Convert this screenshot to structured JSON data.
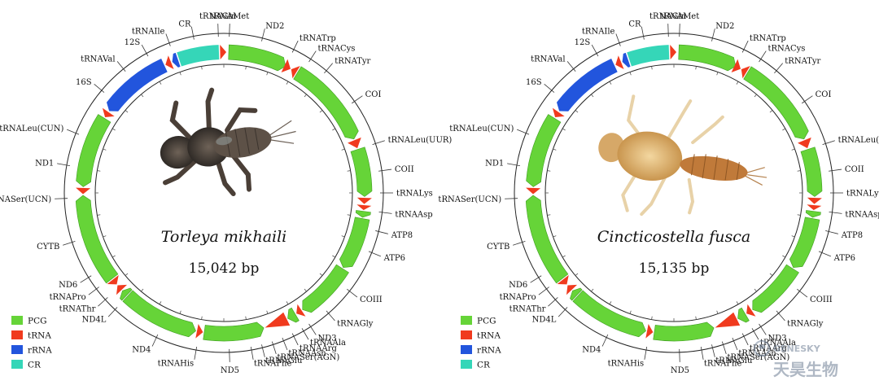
{
  "colors": {
    "PCG": "#66d438",
    "tRNA": "#f03a1e",
    "rRNA": "#2255dd",
    "CR": "#35d6b8"
  },
  "legend": [
    {
      "key": "PCG",
      "label": "PCG"
    },
    {
      "key": "tRNA",
      "label": "tRNA"
    },
    {
      "key": "rRNA",
      "label": "rRNA"
    },
    {
      "key": "CR",
      "label": "CR"
    }
  ],
  "maps": [
    {
      "species": "Torleya mikhaili",
      "length": "15,042 bp",
      "image_alt": "Torleya mikhaili nymph photo",
      "features": [
        {
          "type": "PCG",
          "start": 2,
          "end": 26,
          "dir": 1
        },
        {
          "type": "tRNA",
          "start": 25.5,
          "end": 28.3,
          "dir": 1
        },
        {
          "type": "tRNA",
          "start": 28.6,
          "end": 31,
          "dir": -1
        },
        {
          "type": "PCG",
          "start": 31.5,
          "end": 67.5,
          "dir": 1
        },
        {
          "type": "tRNA",
          "start": 68,
          "end": 71.5,
          "dir": 1
        },
        {
          "type": "PCG",
          "start": 72,
          "end": 91.5,
          "dir": 1
        },
        {
          "type": "tRNA",
          "start": 92,
          "end": 94.5,
          "dir": 1
        },
        {
          "type": "tRNA",
          "start": 95,
          "end": 97,
          "dir": 1
        },
        {
          "type": "PCG",
          "start": 97.5,
          "end": 100,
          "dir": 1
        },
        {
          "type": "PCG",
          "start": 100.5,
          "end": 122,
          "dir": 1
        },
        {
          "type": "PCG",
          "start": 122.5,
          "end": 146,
          "dir": 1
        },
        {
          "type": "tRNA",
          "start": 146.5,
          "end": 149,
          "dir": 1
        },
        {
          "type": "PCG",
          "start": 149.5,
          "end": 153,
          "dir": 1
        },
        {
          "type": "tRNA",
          "start": 153.5,
          "end": 163,
          "dir": 1
        },
        {
          "type": "PCG",
          "start": 163.5,
          "end": 188,
          "dir": -1
        },
        {
          "type": "tRNA",
          "start": 188.5,
          "end": 191,
          "dir": -1
        },
        {
          "type": "PCG",
          "start": 191.5,
          "end": 223,
          "dir": -1
        },
        {
          "type": "PCG",
          "start": 223.5,
          "end": 226,
          "dir": 1
        },
        {
          "type": "tRNA",
          "start": 226.5,
          "end": 229,
          "dir": 1
        },
        {
          "type": "tRNA",
          "start": 229.5,
          "end": 232,
          "dir": -1
        },
        {
          "type": "PCG",
          "start": 232.5,
          "end": 269,
          "dir": 1
        },
        {
          "type": "tRNA",
          "start": 269.5,
          "end": 272,
          "dir": -1
        },
        {
          "type": "PCG",
          "start": 272.5,
          "end": 302,
          "dir": -1
        },
        {
          "type": "tRNA",
          "start": 302.5,
          "end": 305,
          "dir": -1
        },
        {
          "type": "rRNA",
          "start": 305.5,
          "end": 335,
          "dir": -1
        },
        {
          "type": "tRNA",
          "start": 335.5,
          "end": 338,
          "dir": -1
        },
        {
          "type": "rRNA",
          "start": 338.5,
          "end": 341,
          "dir": -1
        },
        {
          "type": "CR",
          "start": 341.5,
          "end": 358,
          "dir": 0
        },
        {
          "type": "tRNA",
          "start": 358.5,
          "end": 361,
          "dir": 1
        }
      ],
      "labels": [
        {
          "text": "tRNAMet",
          "angle": 2
        },
        {
          "text": "CR",
          "angle": 349
        },
        {
          "text": "tRNAGln",
          "angle": 358
        },
        {
          "text": "ND2",
          "angle": 14
        },
        {
          "text": "tRNATrp",
          "angle": 26
        },
        {
          "text": "tRNACys",
          "angle": 33
        },
        {
          "text": "tRNATyr",
          "angle": 40
        },
        {
          "text": "COI",
          "angle": 55
        },
        {
          "text": "tRNALeu(UUR)",
          "angle": 72
        },
        {
          "text": "COII",
          "angle": 82
        },
        {
          "text": "tRNALys",
          "angle": 90
        },
        {
          "text": "tRNAAsp",
          "angle": 97
        },
        {
          "text": "ATP8",
          "angle": 104
        },
        {
          "text": "ATP6",
          "angle": 112
        },
        {
          "text": "COIII",
          "angle": 128
        },
        {
          "text": "tRNAGly",
          "angle": 139
        },
        {
          "text": "ND3",
          "angle": 147
        },
        {
          "text": "tRNAAla",
          "angle": 150
        },
        {
          "text": "tRNAArg",
          "angle": 154
        },
        {
          "text": "tRNAAsn",
          "angle": 158
        },
        {
          "text": "tRNASer(AGN)",
          "angle": 162
        },
        {
          "text": "tRNAGlu",
          "angle": 166
        },
        {
          "text": "tRNAPhe",
          "angle": 170
        },
        {
          "text": "ND5",
          "angle": 178
        },
        {
          "text": "tRNAHis",
          "angle": 190
        },
        {
          "text": "ND4",
          "angle": 205
        },
        {
          "text": "ND4L",
          "angle": 223
        },
        {
          "text": "tRNAThr",
          "angle": 228
        },
        {
          "text": "tRNAPro",
          "angle": 233
        },
        {
          "text": "ND6",
          "angle": 238
        },
        {
          "text": "CYTB",
          "angle": 252
        },
        {
          "text": "tRNASer(UCN)",
          "angle": 268
        },
        {
          "text": "ND1",
          "angle": 280
        },
        {
          "text": "tRNALeu(CUN)",
          "angle": 292
        },
        {
          "text": "16S",
          "angle": 310
        },
        {
          "text": "tRNAVal",
          "angle": 321
        },
        {
          "text": "12S",
          "angle": 331
        },
        {
          "text": "tRNAIle",
          "angle": 340
        }
      ]
    },
    {
      "species": "Cincticostella fusca",
      "length": "15,135 bp",
      "image_alt": "Cincticostella fusca nymph photo",
      "features": [
        {
          "type": "PCG",
          "start": 2,
          "end": 26,
          "dir": 1
        },
        {
          "type": "tRNA",
          "start": 25.5,
          "end": 28.3,
          "dir": 1
        },
        {
          "type": "tRNA",
          "start": 28.6,
          "end": 31,
          "dir": -1
        },
        {
          "type": "PCG",
          "start": 31.5,
          "end": 67.5,
          "dir": 1
        },
        {
          "type": "tRNA",
          "start": 68,
          "end": 71.5,
          "dir": 1
        },
        {
          "type": "PCG",
          "start": 72,
          "end": 91.5,
          "dir": 1
        },
        {
          "type": "tRNA",
          "start": 92,
          "end": 94.5,
          "dir": 1
        },
        {
          "type": "tRNA",
          "start": 95,
          "end": 97,
          "dir": 1
        },
        {
          "type": "PCG",
          "start": 97.5,
          "end": 100,
          "dir": 1
        },
        {
          "type": "PCG",
          "start": 100.5,
          "end": 122,
          "dir": 1
        },
        {
          "type": "PCG",
          "start": 122.5,
          "end": 146,
          "dir": 1
        },
        {
          "type": "tRNA",
          "start": 146.5,
          "end": 149,
          "dir": 1
        },
        {
          "type": "PCG",
          "start": 149.5,
          "end": 153,
          "dir": 1
        },
        {
          "type": "tRNA",
          "start": 153.5,
          "end": 163,
          "dir": 1
        },
        {
          "type": "PCG",
          "start": 163.5,
          "end": 188,
          "dir": -1
        },
        {
          "type": "tRNA",
          "start": 188.5,
          "end": 191,
          "dir": -1
        },
        {
          "type": "PCG",
          "start": 191.5,
          "end": 223,
          "dir": -1
        },
        {
          "type": "PCG",
          "start": 223.5,
          "end": 226,
          "dir": 1
        },
        {
          "type": "tRNA",
          "start": 226.5,
          "end": 229,
          "dir": 1
        },
        {
          "type": "tRNA",
          "start": 229.5,
          "end": 232,
          "dir": -1
        },
        {
          "type": "PCG",
          "start": 232.5,
          "end": 269,
          "dir": 1
        },
        {
          "type": "tRNA",
          "start": 269.5,
          "end": 272,
          "dir": -1
        },
        {
          "type": "PCG",
          "start": 272.5,
          "end": 302,
          "dir": -1
        },
        {
          "type": "tRNA",
          "start": 302.5,
          "end": 305,
          "dir": -1
        },
        {
          "type": "rRNA",
          "start": 305.5,
          "end": 335,
          "dir": -1
        },
        {
          "type": "tRNA",
          "start": 335.5,
          "end": 338,
          "dir": -1
        },
        {
          "type": "rRNA",
          "start": 338.5,
          "end": 341,
          "dir": -1
        },
        {
          "type": "CR",
          "start": 341.5,
          "end": 358,
          "dir": 0
        },
        {
          "type": "tRNA",
          "start": 358.5,
          "end": 361,
          "dir": 1
        }
      ],
      "labels": [
        {
          "text": "tRNAMet",
          "angle": 2
        },
        {
          "text": "CR",
          "angle": 349
        },
        {
          "text": "tRNAGln",
          "angle": 358
        },
        {
          "text": "ND2",
          "angle": 14
        },
        {
          "text": "tRNATrp",
          "angle": 26
        },
        {
          "text": "tRNACys",
          "angle": 33
        },
        {
          "text": "tRNATyr",
          "angle": 40
        },
        {
          "text": "COI",
          "angle": 55
        },
        {
          "text": "tRNALeu(UUR)",
          "angle": 72
        },
        {
          "text": "COII",
          "angle": 82
        },
        {
          "text": "tRNALys",
          "angle": 90
        },
        {
          "text": "tRNAAsp",
          "angle": 97
        },
        {
          "text": "ATP8",
          "angle": 104
        },
        {
          "text": "ATP6",
          "angle": 112
        },
        {
          "text": "COIII",
          "angle": 128
        },
        {
          "text": "tRNAGly",
          "angle": 139
        },
        {
          "text": "ND3",
          "angle": 147
        },
        {
          "text": "tRNAAla",
          "angle": 150
        },
        {
          "text": "tRNAArg",
          "angle": 154
        },
        {
          "text": "tRNAAsn",
          "angle": 158
        },
        {
          "text": "tRNASer(AGN)",
          "angle": 162
        },
        {
          "text": "tRNAGlu",
          "angle": 166
        },
        {
          "text": "tRNAPhe",
          "angle": 170
        },
        {
          "text": "ND5",
          "angle": 178
        },
        {
          "text": "tRNAHis",
          "angle": 190
        },
        {
          "text": "ND4",
          "angle": 205
        },
        {
          "text": "ND4L",
          "angle": 223
        },
        {
          "text": "tRNAThr",
          "angle": 228
        },
        {
          "text": "tRNAPro",
          "angle": 233
        },
        {
          "text": "ND6",
          "angle": 238
        },
        {
          "text": "CYTB",
          "angle": 252
        },
        {
          "text": "tRNASer(UCN)",
          "angle": 268
        },
        {
          "text": "ND1",
          "angle": 280
        },
        {
          "text": "tRNALeu(CUN)",
          "angle": 292
        },
        {
          "text": "16S",
          "angle": 310
        },
        {
          "text": "tRNAVal",
          "angle": 321
        },
        {
          "text": "12S",
          "angle": 331
        },
        {
          "text": "tRNAIle",
          "angle": 340
        }
      ]
    }
  ],
  "watermark": {
    "brand": "GENESKY",
    "cn": "天昊生物"
  }
}
